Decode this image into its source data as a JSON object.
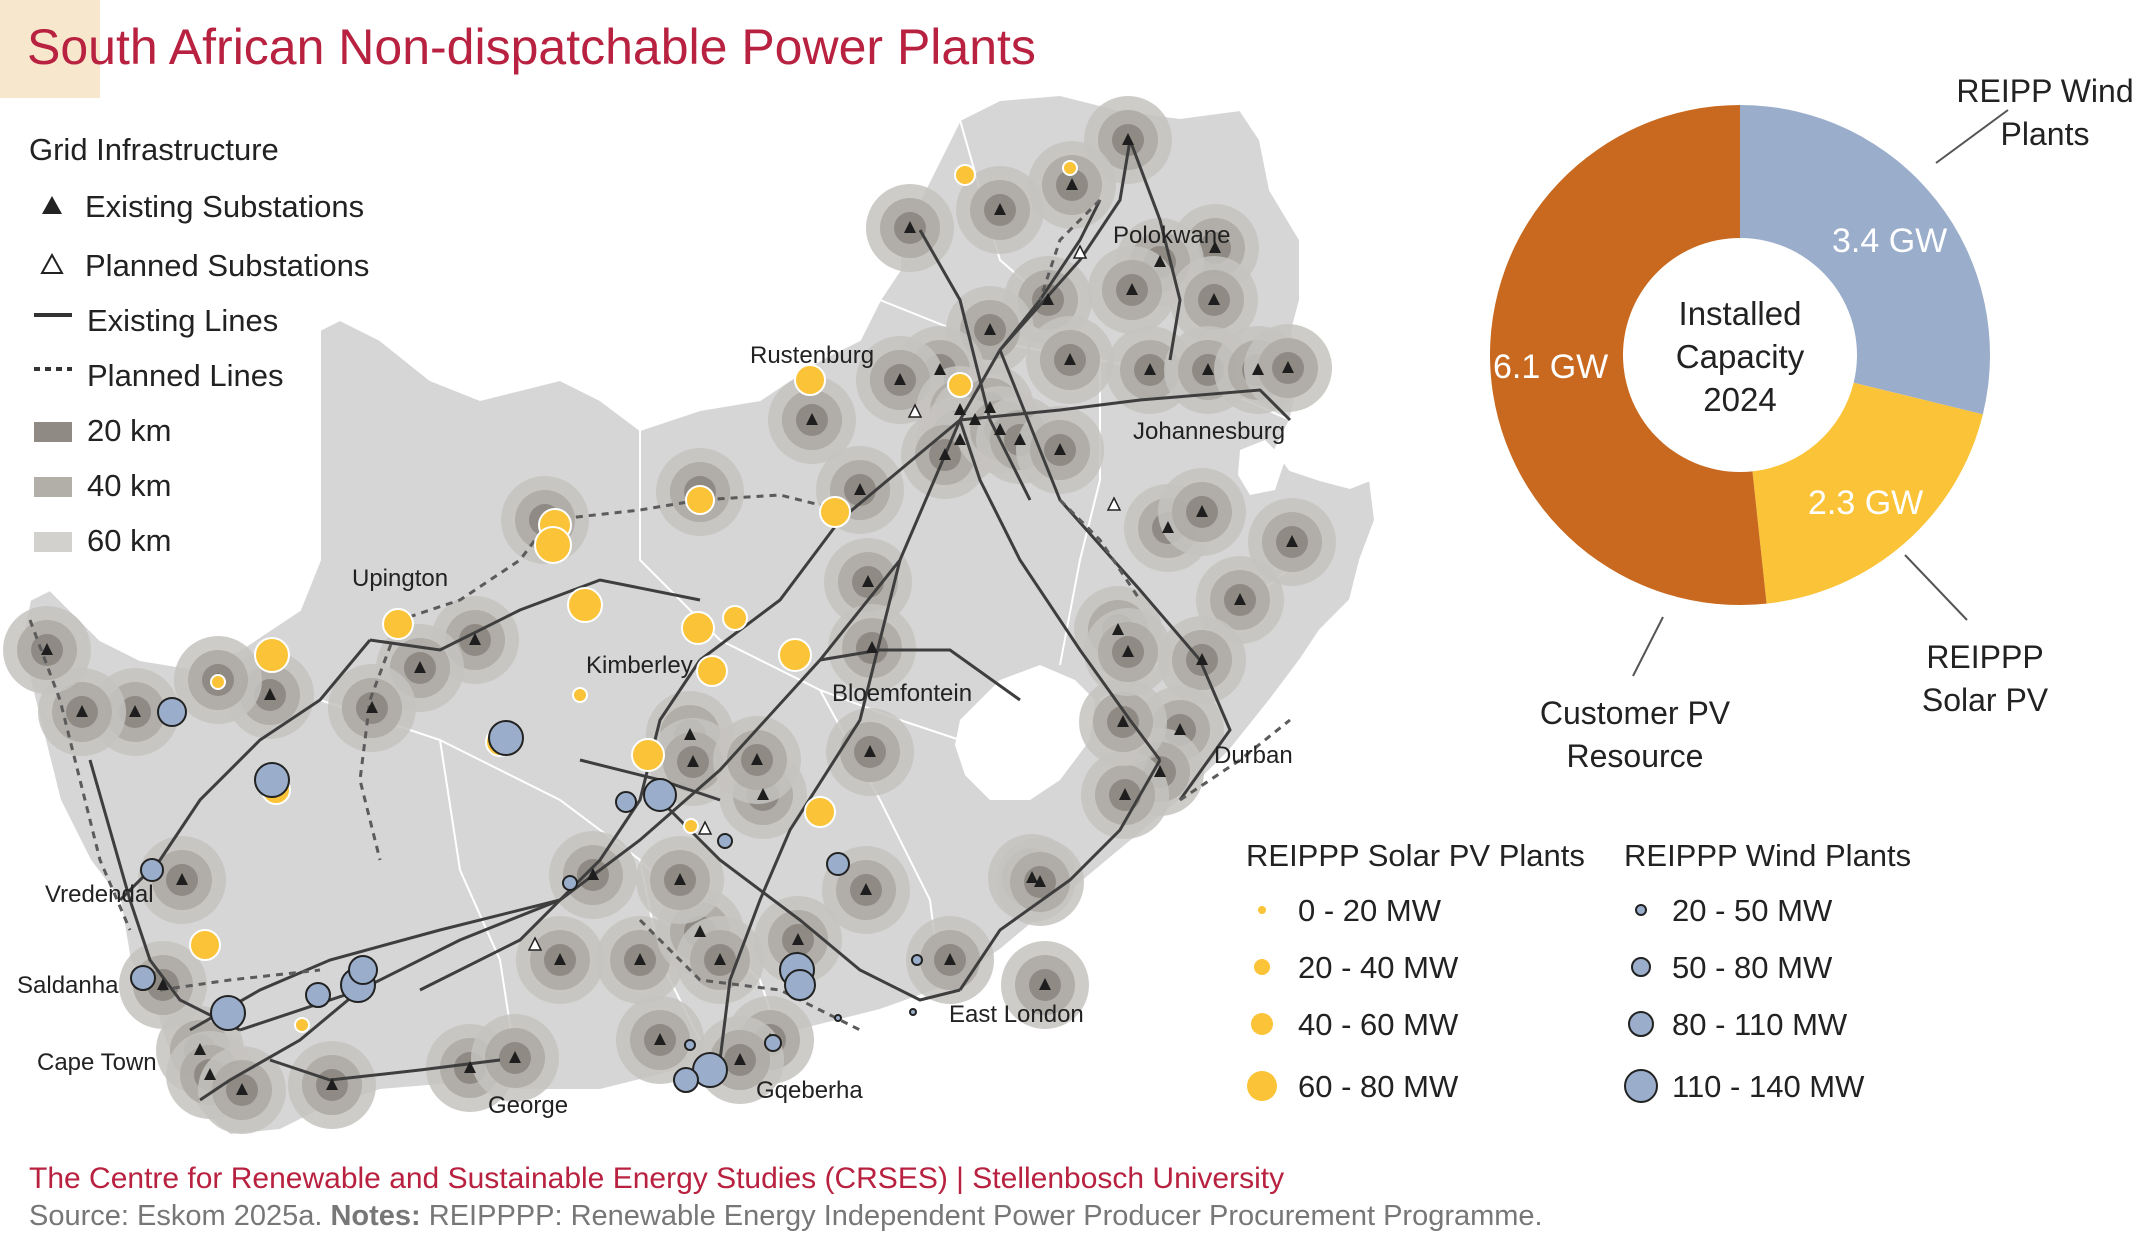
{
  "title": "South African Non-dispatchable Power Plants",
  "grid_legend": {
    "title": "Grid Infrastructure",
    "items": [
      {
        "label": "Existing Substations",
        "icon": "filled-triangle-icon"
      },
      {
        "label": "Planned Substations",
        "icon": "outline-triangle-icon"
      },
      {
        "label": "Existing Lines",
        "icon": "solid-line-icon"
      },
      {
        "label": "Planned Lines",
        "icon": "dashed-line-icon"
      },
      {
        "label": "20 km",
        "color": "#8f8b84"
      },
      {
        "label": "40 km",
        "color": "#b2afa9"
      },
      {
        "label": "60 km",
        "color": "#d3d1cd"
      }
    ]
  },
  "cities": [
    {
      "name": "Polokwane"
    },
    {
      "name": "Rustenburg"
    },
    {
      "name": "Johannesburg"
    },
    {
      "name": "Upington"
    },
    {
      "name": "Kimberley"
    },
    {
      "name": "Bloemfontein"
    },
    {
      "name": "Durban"
    },
    {
      "name": "Vredendal"
    },
    {
      "name": "Saldanha"
    },
    {
      "name": "Cape Town"
    },
    {
      "name": "George"
    },
    {
      "name": "Gqeberha"
    },
    {
      "name": "East London"
    }
  ],
  "capacity": {
    "center_label": "Installed Capacity 2024",
    "segments": [
      {
        "label": "REIPP Wind Plants",
        "value": 3.4,
        "value_label": "3.4 GW",
        "color": "#9aaecb"
      },
      {
        "label": "REIPPP Solar PV",
        "value": 2.3,
        "value_label": "2.3 GW",
        "color": "#fbc337"
      },
      {
        "label": "Customer PV Resource",
        "value": 6.1,
        "value_label": "6.1 GW",
        "color": "#c8691f"
      }
    ]
  },
  "solar_legend": {
    "title": "REIPPP Solar PV Plants",
    "color": "#fbc337",
    "items": [
      {
        "label": "0 - 20 MW"
      },
      {
        "label": "20 - 40 MW"
      },
      {
        "label": "40 - 60 MW"
      },
      {
        "label": "60 - 80 MW"
      }
    ]
  },
  "wind_legend": {
    "title": "REIPPP Wind Plants",
    "color": "#9aaecb",
    "items": [
      {
        "label": "20 - 50 MW"
      },
      {
        "label": "50 - 80 MW"
      },
      {
        "label": "80 - 110 MW"
      },
      {
        "label": "110 - 140 MW"
      }
    ]
  },
  "footer": {
    "org": "The Centre for Renewable and Sustainable Energy Studies (CRSES) | Stellenbosch University",
    "source_label": "Source:",
    "source_text": "Eskom 2025a.",
    "notes_label": "Notes:",
    "notes_text": "REIPPPP: Renewable Energy Independent Power Producer Procurement Programme."
  }
}
